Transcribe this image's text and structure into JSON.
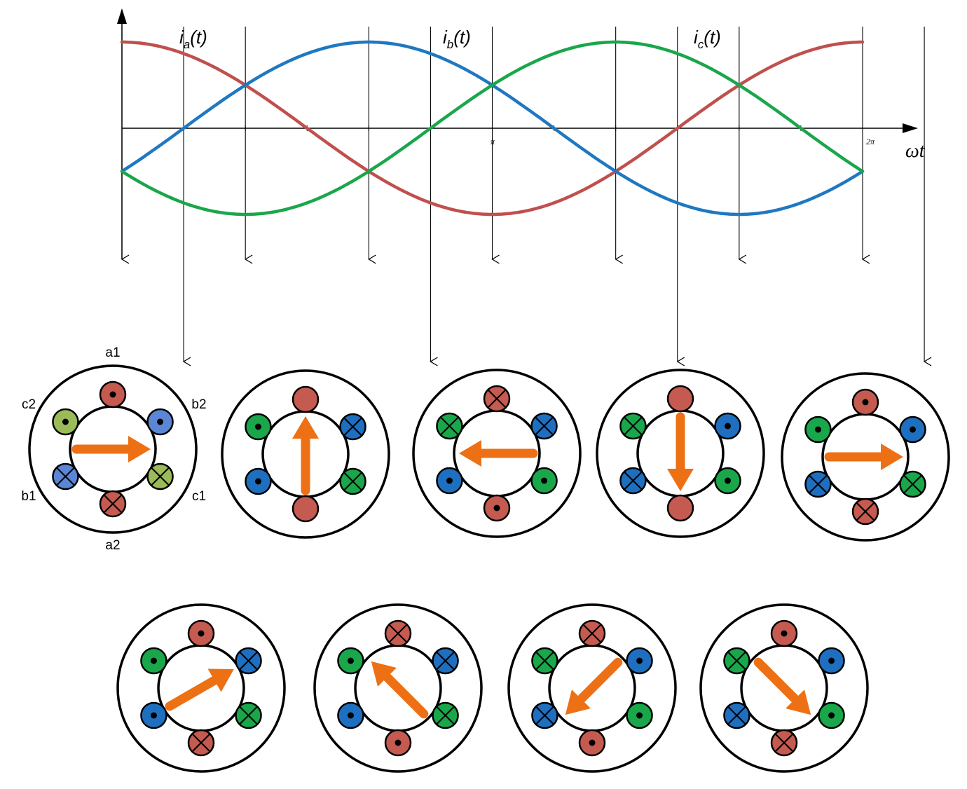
{
  "waveform": {
    "curve_labels": [
      {
        "key": "a",
        "base": "i",
        "sub": "a",
        "suffix": "(t)"
      },
      {
        "key": "b",
        "base": "i",
        "sub": "b",
        "suffix": "(t)"
      },
      {
        "key": "c",
        "base": "i",
        "sub": "c",
        "suffix": "(t)"
      }
    ],
    "tick_labels": {
      "pi": "π",
      "two_pi": "2π"
    },
    "axis_label": "ωt",
    "colors": {
      "a": "#c0504d",
      "b": "#1f78c1",
      "c": "#1aa64a"
    }
  },
  "coil_labels": {
    "a1": "a1",
    "a2": "a2",
    "b1": "b1",
    "b2": "b2",
    "c1": "c1",
    "c2": "c2"
  },
  "colors": {
    "a": "#c55a50",
    "b": "#1f6fc0",
    "c": "#1aa64a",
    "b_first": "#5b86d6",
    "c_first": "#9bbb59",
    "arrow": "#ed7014"
  },
  "stator_states": [
    {
      "field_arrow_angle_deg": 0,
      "coils": {
        "a1": "dot",
        "b2": "dot",
        "c1": "cross",
        "a2": "cross",
        "b1": "cross",
        "c2": "dot"
      }
    },
    {
      "field_arrow_angle_deg": 90,
      "coils": {
        "a1": "none",
        "b2": "cross",
        "c1": "cross",
        "a2": "none",
        "b1": "dot",
        "c2": "dot"
      }
    },
    {
      "field_arrow_angle_deg": 180,
      "coils": {
        "a1": "cross",
        "b2": "cross",
        "c1": "dot",
        "a2": "dot",
        "b1": "dot",
        "c2": "cross"
      }
    },
    {
      "field_arrow_angle_deg": 270,
      "coils": {
        "a1": "none",
        "b2": "dot",
        "c1": "dot",
        "a2": "none",
        "b1": "cross",
        "c2": "cross"
      }
    },
    {
      "field_arrow_angle_deg": 0,
      "coils": {
        "a1": "dot",
        "b2": "dot",
        "c1": "cross",
        "a2": "cross",
        "b1": "cross",
        "c2": "dot"
      }
    },
    {
      "field_arrow_angle_deg": 30,
      "coils": {
        "a1": "dot",
        "b2": "cross",
        "c1": "cross",
        "a2": "cross",
        "b1": "dot",
        "c2": "dot"
      }
    },
    {
      "field_arrow_angle_deg": 135,
      "coils": {
        "a1": "cross",
        "b2": "cross",
        "c1": "cross",
        "a2": "dot",
        "b1": "dot",
        "c2": "dot"
      }
    },
    {
      "field_arrow_angle_deg": 225,
      "coils": {
        "a1": "cross",
        "b2": "dot",
        "c1": "dot",
        "a2": "dot",
        "b1": "cross",
        "c2": "cross"
      }
    },
    {
      "field_arrow_angle_deg": 315,
      "coils": {
        "a1": "dot",
        "b2": "dot",
        "c1": "dot",
        "a2": "cross",
        "b1": "cross",
        "c2": "cross"
      }
    }
  ]
}
